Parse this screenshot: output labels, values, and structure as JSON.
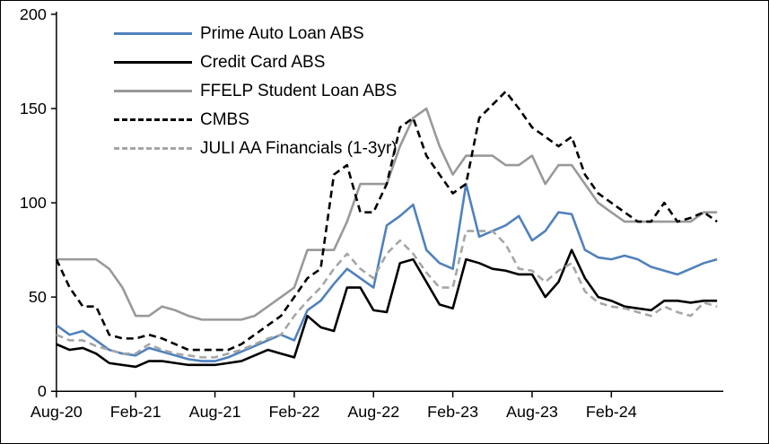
{
  "chart_data": {
    "type": "line",
    "title": "",
    "ylim": [
      0,
      200
    ],
    "y_ticks": [
      0,
      50,
      100,
      150,
      200
    ],
    "x_tick_labels": [
      "Aug-20",
      "Feb-21",
      "Aug-21",
      "Feb-22",
      "Aug-22",
      "Feb-23",
      "Aug-23",
      "Feb-24"
    ],
    "x_tick_positions": [
      0,
      6,
      12,
      18,
      24,
      30,
      36,
      42
    ],
    "n_points": 51,
    "x_unit": "month",
    "grid": false,
    "legend_position": "top-left-inside",
    "axis_color": "#000000",
    "background_color": "#ffffff",
    "series": [
      {
        "name": "Prime Auto Loan ABS",
        "color": "#4F81BD",
        "style": "solid",
        "values": [
          35,
          30,
          32,
          27,
          22,
          20,
          19,
          23,
          21,
          19,
          17,
          16,
          16,
          18,
          21,
          24,
          27,
          30,
          27,
          43,
          48,
          57,
          65,
          60,
          55,
          88,
          93,
          99,
          75,
          68,
          65,
          110,
          82,
          85,
          88,
          93,
          80,
          85,
          95,
          94,
          75,
          71,
          70,
          72,
          70,
          66,
          64,
          62,
          65,
          68,
          70
        ]
      },
      {
        "name": "Credit Card ABS",
        "color": "#000000",
        "style": "solid",
        "values": [
          25,
          22,
          23,
          20,
          15,
          14,
          13,
          16,
          16,
          15,
          14,
          14,
          14,
          15,
          16,
          19,
          22,
          20,
          18,
          40,
          34,
          32,
          55,
          55,
          43,
          42,
          68,
          70,
          58,
          46,
          44,
          70,
          68,
          65,
          64,
          62,
          62,
          50,
          58,
          75,
          60,
          50,
          48,
          45,
          44,
          43,
          48,
          48,
          47,
          48,
          48
        ]
      },
      {
        "name": "FFELP Student Loan ABS",
        "color": "#999999",
        "style": "solid",
        "values": [
          70,
          70,
          70,
          70,
          65,
          55,
          40,
          40,
          45,
          43,
          40,
          38,
          38,
          38,
          38,
          40,
          45,
          50,
          55,
          75,
          75,
          75,
          90,
          110,
          110,
          110,
          130,
          145,
          150,
          130,
          115,
          125,
          125,
          125,
          120,
          120,
          125,
          110,
          120,
          120,
          110,
          100,
          95,
          90,
          90,
          90,
          90,
          90,
          90,
          95,
          95
        ]
      },
      {
        "name": "CMBS",
        "color": "#000000",
        "style": "dashed",
        "values": [
          70,
          55,
          45,
          45,
          30,
          28,
          28,
          30,
          28,
          25,
          22,
          22,
          22,
          22,
          25,
          30,
          35,
          40,
          50,
          60,
          65,
          115,
          120,
          95,
          95,
          110,
          140,
          145,
          125,
          115,
          105,
          110,
          145,
          152,
          159,
          150,
          140,
          135,
          130,
          135,
          115,
          105,
          100,
          95,
          90,
          90,
          100,
          90,
          92,
          95,
          90
        ]
      },
      {
        "name": "JULI AA Financials (1-3yr)",
        "color": "#A6A6A6",
        "style": "dashed",
        "values": [
          30,
          27,
          27,
          24,
          22,
          20,
          20,
          25,
          22,
          20,
          19,
          18,
          18,
          20,
          22,
          25,
          28,
          30,
          40,
          48,
          55,
          65,
          73,
          65,
          60,
          73,
          80,
          73,
          63,
          55,
          55,
          85,
          85,
          85,
          78,
          65,
          64,
          58,
          64,
          68,
          53,
          47,
          45,
          44,
          42,
          40,
          45,
          42,
          40,
          47,
          45
        ]
      }
    ]
  }
}
